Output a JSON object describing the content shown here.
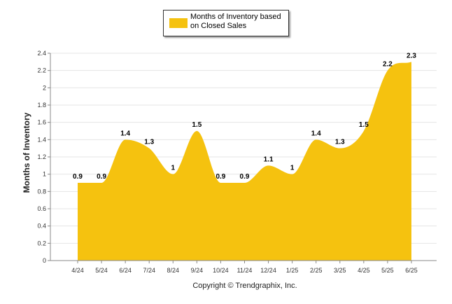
{
  "legend": {
    "label_line1": "Months of Inventory based",
    "label_line2": "on Closed Sales"
  },
  "copyright": "Copyright © Trendgraphix, Inc.",
  "colors": {
    "series": "#F5C20F",
    "grid": "#e5e5e5",
    "axis": "#888888"
  },
  "chart_data": {
    "type": "area",
    "title": "",
    "xlabel": "",
    "ylabel": "Months of Inventory",
    "categories": [
      "4/24",
      "5/24",
      "6/24",
      "7/24",
      "8/24",
      "9/24",
      "10/24",
      "11/24",
      "12/24",
      "1/25",
      "2/25",
      "3/25",
      "4/25",
      "5/25",
      "6/25"
    ],
    "series": [
      {
        "name": "Months of Inventory based on Closed Sales",
        "values": [
          0.9,
          0.9,
          1.4,
          1.3,
          1,
          1.5,
          0.9,
          0.9,
          1.1,
          1,
          1.4,
          1.3,
          1.5,
          2.2,
          2.3
        ]
      }
    ],
    "ylim": [
      0,
      2.4
    ],
    "yticks": [
      "0",
      "0.2",
      "0.4",
      "0.6",
      "0.8",
      "1",
      "1.2",
      "1.4",
      "1.6",
      "1.8",
      "2",
      "2.2",
      "2.4"
    ],
    "grid": true,
    "legend_position": "top-center",
    "data_labels": true
  }
}
